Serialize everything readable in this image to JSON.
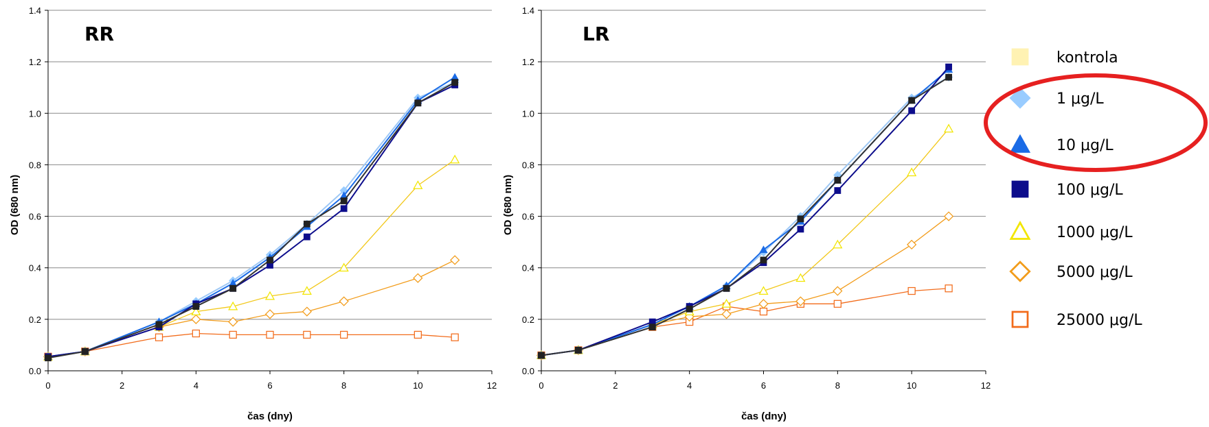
{
  "chart_data": [
    {
      "type": "line",
      "title": "RR",
      "xlabel": "čas (dny)",
      "ylabel": "OD (680 nm)",
      "xlim": [
        0,
        12
      ],
      "ylim": [
        0,
        1.4
      ],
      "xticks": [
        0,
        2,
        4,
        6,
        8,
        10,
        12
      ],
      "yticks": [
        0,
        0.2,
        0.4,
        0.6,
        0.8,
        1.0,
        1.2,
        1.4
      ],
      "ytick_labels": [
        "0.0",
        "0.2",
        "0.4",
        "0.6",
        "0.8",
        "1.0",
        "1.2",
        "1.4"
      ],
      "grid": "horizontal",
      "x": [
        0,
        1,
        3,
        4,
        5,
        6,
        7,
        8,
        10,
        11
      ],
      "series": [
        {
          "name": "kontrola",
          "values": [
            0.05,
            0.075,
            0.18,
            0.25,
            0.32,
            0.43,
            0.57,
            0.66,
            1.04,
            1.12
          ]
        },
        {
          "name": "1 μg/L",
          "values": [
            0.055,
            0.075,
            0.19,
            0.27,
            0.35,
            0.45,
            0.57,
            0.7,
            1.06,
            1.12
          ]
        },
        {
          "name": "10 μg/L",
          "values": [
            0.055,
            0.075,
            0.19,
            0.26,
            0.34,
            0.44,
            0.56,
            0.68,
            1.05,
            1.14
          ]
        },
        {
          "name": "100 μg/L",
          "values": [
            0.055,
            0.075,
            0.17,
            0.26,
            0.32,
            0.41,
            0.52,
            0.63,
            1.04,
            1.11
          ]
        },
        {
          "name": "1000 μg/L",
          "values": [
            0.055,
            0.075,
            0.17,
            0.23,
            0.25,
            0.29,
            0.31,
            0.4,
            0.72,
            0.82
          ]
        },
        {
          "name": "5000 μg/L",
          "values": [
            0.055,
            0.075,
            0.17,
            0.2,
            0.19,
            0.22,
            0.23,
            0.27,
            0.36,
            0.43
          ]
        },
        {
          "name": "25000 μg/L",
          "values": [
            0.055,
            0.075,
            0.13,
            0.145,
            0.14,
            0.14,
            0.14,
            0.14,
            0.14,
            0.13
          ]
        }
      ]
    },
    {
      "type": "line",
      "title": "LR",
      "xlabel": "čas (dny)",
      "ylabel": "OD (680 nm)",
      "xlim": [
        0,
        12
      ],
      "ylim": [
        0,
        1.4
      ],
      "xticks": [
        0,
        2,
        4,
        6,
        8,
        10,
        12
      ],
      "yticks": [
        0,
        0.2,
        0.4,
        0.6,
        0.8,
        1.0,
        1.2,
        1.4
      ],
      "ytick_labels": [
        "0.0",
        "0.2",
        "0.4",
        "0.6",
        "0.8",
        "1.0",
        "1.2",
        "1.4"
      ],
      "grid": "horizontal",
      "x": [
        0,
        1,
        3,
        4,
        5,
        6,
        7,
        8,
        10,
        11
      ],
      "series": [
        {
          "name": "kontrola",
          "values": [
            0.06,
            0.08,
            0.17,
            0.24,
            0.32,
            0.43,
            0.59,
            0.74,
            1.05,
            1.14
          ]
        },
        {
          "name": "1 μg/L",
          "values": [
            0.06,
            0.08,
            0.18,
            0.25,
            0.33,
            0.46,
            0.6,
            0.76,
            1.06,
            1.14
          ]
        },
        {
          "name": "10 μg/L",
          "values": [
            0.06,
            0.08,
            0.18,
            0.25,
            0.33,
            0.47,
            0.58,
            0.74,
            1.05,
            1.17
          ]
        },
        {
          "name": "100 μg/L",
          "values": [
            0.06,
            0.08,
            0.19,
            0.25,
            0.32,
            0.42,
            0.55,
            0.7,
            1.01,
            1.18
          ]
        },
        {
          "name": "1000 μg/L",
          "values": [
            0.06,
            0.08,
            0.18,
            0.23,
            0.26,
            0.31,
            0.36,
            0.49,
            0.77,
            0.94
          ]
        },
        {
          "name": "5000 μg/L",
          "values": [
            0.06,
            0.08,
            0.18,
            0.21,
            0.22,
            0.26,
            0.27,
            0.31,
            0.49,
            0.6
          ]
        },
        {
          "name": "25000 μg/L",
          "values": [
            0.06,
            0.08,
            0.17,
            0.19,
            0.25,
            0.23,
            0.26,
            0.26,
            0.31,
            0.32
          ]
        }
      ]
    }
  ],
  "legend": {
    "placement": "right",
    "items": [
      {
        "label": "kontrola",
        "marker": "square-filled",
        "color": "#fff2b3"
      },
      {
        "label": "1 μg/L",
        "marker": "diamond-filled",
        "color": "#99ccff"
      },
      {
        "label": "10 μg/L",
        "marker": "triangle-filled",
        "color": "#1a6be6"
      },
      {
        "label": "100 μg/L",
        "marker": "square-filled",
        "color": "#0d0d8c"
      },
      {
        "label": "1000 μg/L",
        "marker": "triangle-open",
        "color": "#f2e600"
      },
      {
        "label": "5000 μg/L",
        "marker": "diamond-open",
        "color": "#f29c1a"
      },
      {
        "label": "25000 μg/L",
        "marker": "square-open",
        "color": "#f26b1a"
      }
    ],
    "highlight": {
      "shape": "ellipse",
      "color": "#e62020",
      "items": [
        "1 μg/L",
        "10 μg/L"
      ]
    }
  },
  "style": {
    "series_line_colors": [
      "#333333",
      "#9ec8f5",
      "#1a6be6",
      "#0d0d8c",
      "#f2c81a",
      "#f29c1a",
      "#f26b1a"
    ],
    "grid_color": "#888888"
  }
}
